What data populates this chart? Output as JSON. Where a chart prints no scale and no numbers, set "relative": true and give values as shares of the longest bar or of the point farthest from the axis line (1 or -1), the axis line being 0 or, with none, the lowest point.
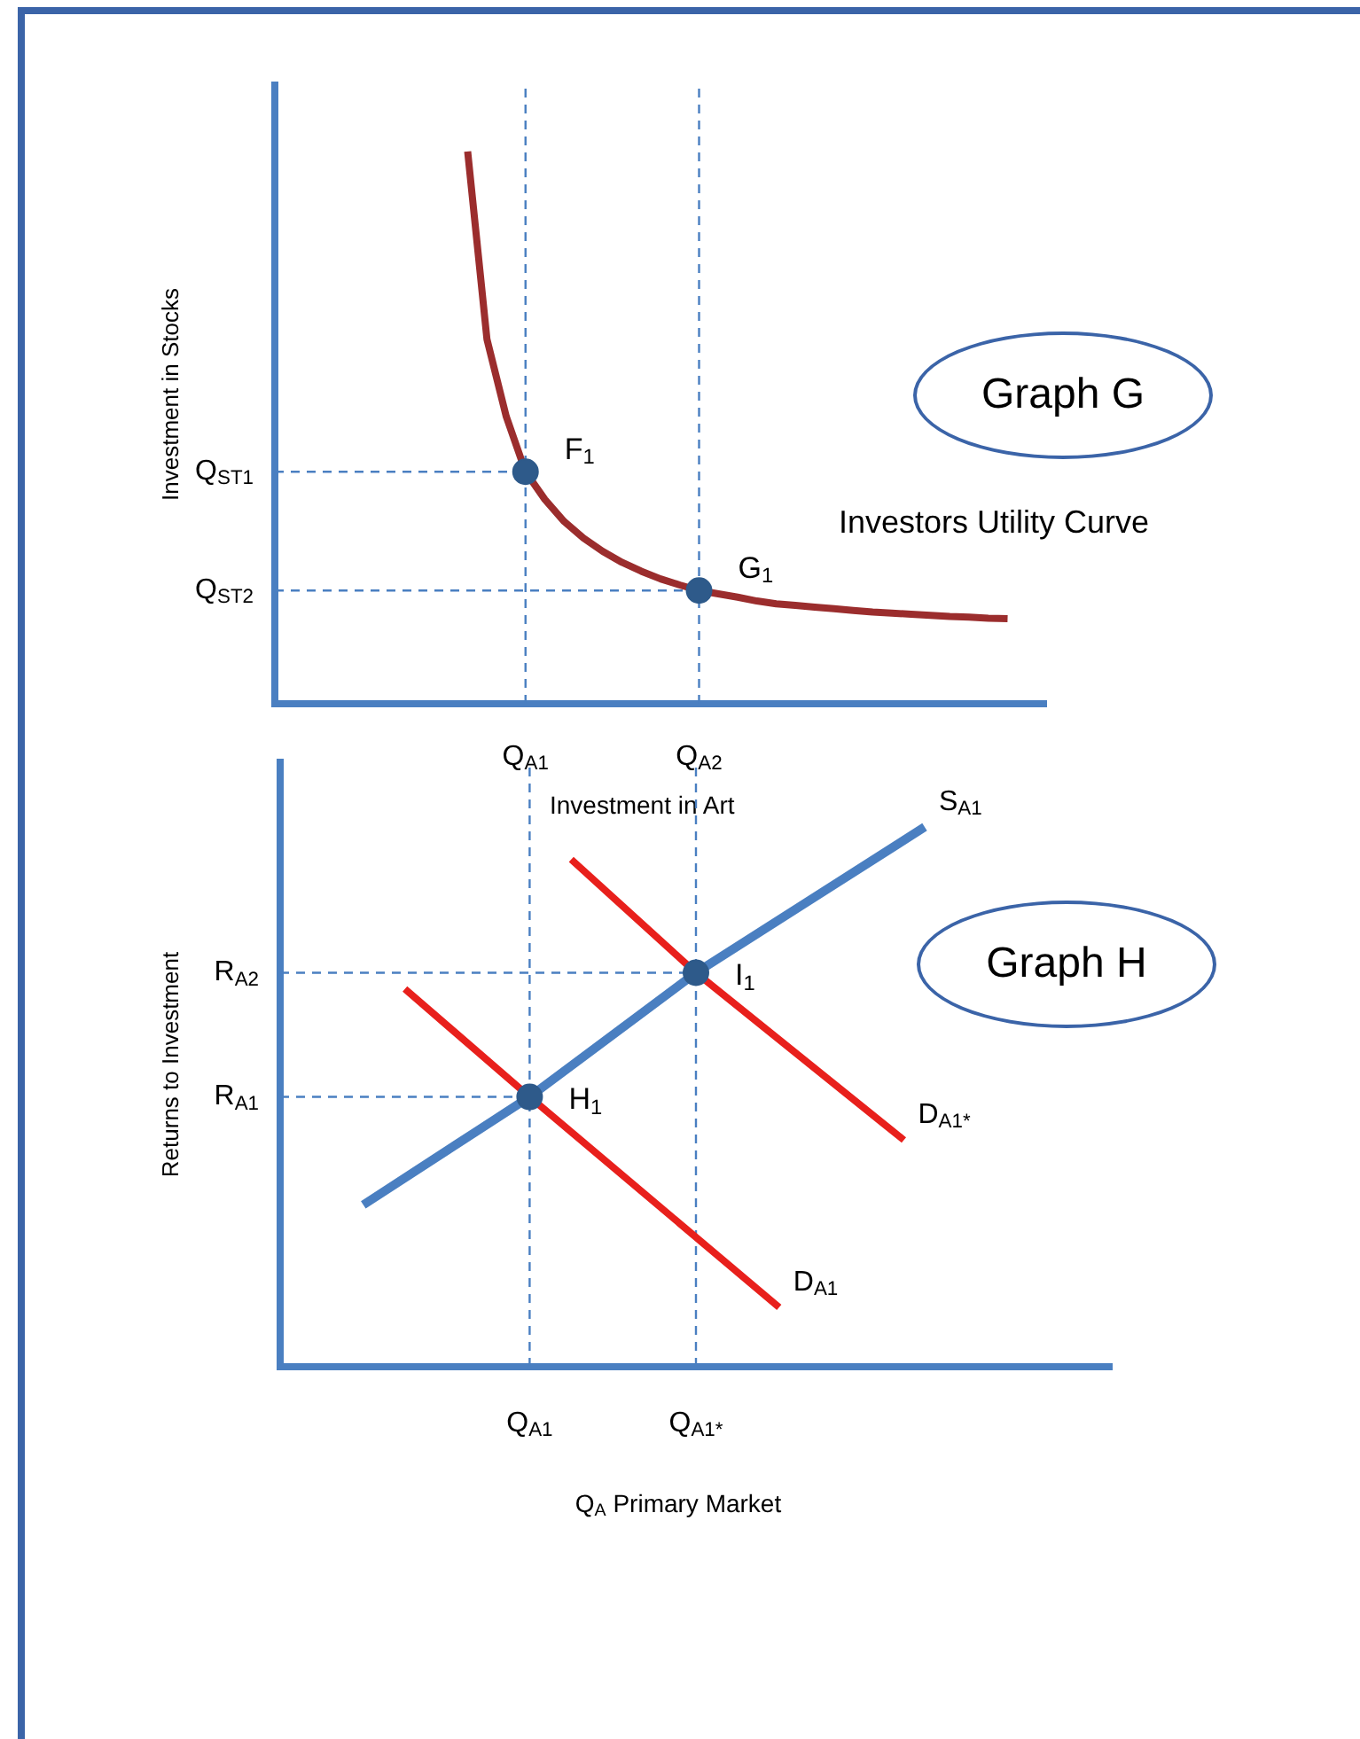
{
  "chart_data": [
    {
      "type": "line",
      "title": "Graph G",
      "xlabel": "Investment in Art",
      "ylabel": "Investment in Stocks",
      "relative": true,
      "legend": false,
      "grid": false,
      "categories": [
        null,
        null,
        null,
        null,
        null,
        null,
        null,
        null,
        null,
        null,
        null,
        null,
        null,
        "Q$_{A1}$",
        null,
        null,
        null,
        null,
        null,
        null,
        null,
        null,
        "Q$_{A2}$",
        null,
        null,
        null,
        null,
        null,
        null,
        null,
        null,
        null,
        null,
        null,
        null,
        null,
        null,
        null,
        null,
        null,
        null
      ],
      "series": [
        {
          "type": "line",
          "color": "#9b2d2d",
          "marker": "none",
          "values": [
            null,
            null,
            null,
            null,
            null,
            null,
            null,
            null,
            null,
            null,
            1,
            0.66,
            0.52,
            0.42,
            0.37,
            0.33,
            0.3,
            0.276,
            0.256,
            0.24,
            0.226,
            0.215,
            0.205,
            0.199,
            0.193,
            0.186,
            0.181,
            0.178,
            0.175,
            0.172,
            0.169,
            0.166,
            0.164,
            0.162,
            0.16,
            0.158,
            0.157,
            0.155,
            0.154,
            null,
            null
          ]
        },
        {
          "type": "scatter",
          "color": "#2e5a8a",
          "marker": "circle",
          "values": [
            null,
            null,
            null,
            null,
            null,
            null,
            null,
            null,
            null,
            null,
            null,
            null,
            null,
            0.42,
            null,
            null,
            null,
            null,
            null,
            null,
            null,
            null,
            0.205,
            null,
            null,
            null,
            null,
            null,
            null,
            null,
            null,
            null,
            null,
            null,
            null,
            null,
            null,
            null,
            null,
            null,
            null
          ]
        }
      ],
      "ref_lines": [
        {
          "axis": "x",
          "value": "Q$_{A1}$",
          "color": "#4a7fc1",
          "line_style": "dashed"
        },
        {
          "axis": "x",
          "value": "Q$_{A2}$",
          "color": "#4a7fc1",
          "line_style": "dashed"
        },
        {
          "axis": "y",
          "value": 0.42,
          "label": "Q$_{ST1}$",
          "color": "#4a7fc1",
          "line_style": "dashed"
        },
        {
          "axis": "y",
          "value": 0.205,
          "label": "Q$_{ST2}$",
          "color": "#4a7fc1",
          "line_style": "dashed"
        }
      ],
      "annotations": [
        {
          "text": "F$_{1}$",
          "x": "Q$_{A1}$",
          "y": 0.42
        },
        {
          "text": "G$_{1}$",
          "x": "Q$_{A2}$",
          "y": 0.205
        },
        "Investors Utility Curve"
      ]
    },
    {
      "type": "line",
      "title": "Graph H",
      "xlabel": "Q$_{A}$ Primary Market",
      "ylabel": "Returns to Investment",
      "relative": true,
      "legend": false,
      "grid": false,
      "categories": [
        null,
        null,
        null,
        null,
        null,
        null,
        null,
        null,
        null,
        null,
        null,
        null,
        "Q$_{A1}$",
        null,
        null,
        null,
        null,
        null,
        null,
        null,
        "Q$_{A1*}$",
        null,
        null,
        null,
        null,
        null,
        null,
        null,
        null,
        null,
        null,
        null,
        null,
        null,
        null,
        null,
        null,
        null,
        null,
        null,
        null
      ],
      "series": [
        {
          "type": "line",
          "name": "S$_{A1}$",
          "color": "#4a7fc1",
          "marker": "none",
          "values": [
            null,
            null,
            null,
            null,
            0.3,
            null,
            null,
            null,
            null,
            null,
            null,
            null,
            0.5,
            null,
            null,
            null,
            null,
            null,
            null,
            null,
            0.73,
            null,
            null,
            null,
            null,
            null,
            null,
            null,
            null,
            null,
            null,
            1,
            null,
            null,
            null,
            null,
            null,
            null,
            null,
            null,
            null
          ]
        },
        {
          "type": "line",
          "name": "D$_{A1}$",
          "color": "#e8201c",
          "marker": "none",
          "values": [
            null,
            null,
            null,
            null,
            null,
            null,
            0.7,
            null,
            null,
            null,
            null,
            null,
            0.5,
            null,
            null,
            null,
            null,
            null,
            null,
            null,
            null,
            null,
            null,
            null,
            0.11,
            null,
            null,
            null,
            null,
            null,
            null,
            null,
            null,
            null,
            null,
            null,
            null,
            null,
            null,
            null,
            null
          ]
        },
        {
          "type": "line",
          "name": "D$_{A1*}$",
          "color": "#e8201c",
          "marker": "none",
          "values": [
            null,
            null,
            null,
            null,
            null,
            null,
            null,
            null,
            null,
            null,
            null,
            null,
            null,
            null,
            0.94,
            null,
            null,
            null,
            null,
            null,
            0.73,
            null,
            null,
            null,
            null,
            null,
            null,
            null,
            null,
            null,
            0.42,
            null,
            null,
            null,
            null,
            null,
            null,
            null,
            null,
            null,
            null
          ]
        },
        {
          "type": "scatter",
          "color": "#2e5a8a",
          "marker": "circle",
          "values": [
            null,
            null,
            null,
            null,
            null,
            null,
            null,
            null,
            null,
            null,
            null,
            null,
            0.5,
            null,
            null,
            null,
            null,
            null,
            null,
            null,
            0.73,
            null,
            null,
            null,
            null,
            null,
            null,
            null,
            null,
            null,
            null,
            null,
            null,
            null,
            null,
            null,
            null,
            null,
            null,
            null,
            null
          ]
        }
      ],
      "ref_lines": [
        {
          "axis": "x",
          "value": "Q$_{A1}$",
          "color": "#4a7fc1",
          "line_style": "dashed"
        },
        {
          "axis": "x",
          "value": "Q$_{A1*}$",
          "color": "#4a7fc1",
          "line_style": "dashed"
        },
        {
          "axis": "y",
          "value": 0.5,
          "label": "R$_{A1}$",
          "color": "#4a7fc1",
          "line_style": "dashed"
        },
        {
          "axis": "y",
          "value": 0.73,
          "label": "R$_{A2}$",
          "color": "#4a7fc1",
          "line_style": "dashed"
        }
      ],
      "annotations": [
        {
          "text": "H$_{1}$",
          "x": "Q$_{A1}$",
          "y": 0.5
        },
        {
          "text": "I$_{1}$",
          "x": "Q$_{A1*}$",
          "y": 0.73
        }
      ]
    }
  ]
}
